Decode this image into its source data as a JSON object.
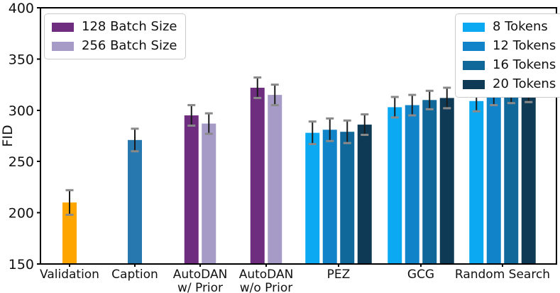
{
  "chart_data": {
    "type": "bar",
    "title": "",
    "xlabel": "",
    "ylabel": "FID",
    "ylim": [
      150,
      400
    ],
    "yticks": [
      150,
      200,
      250,
      300,
      350,
      400
    ],
    "grid": false,
    "error_bars": true,
    "frame": {
      "stroke": "#000000"
    },
    "legends": [
      {
        "position": "upper-left",
        "entries": [
          {
            "label": "128 Batch Size",
            "color": "#6E2D7F"
          },
          {
            "label": "256 Batch Size",
            "color": "#A69BC7"
          }
        ]
      },
      {
        "position": "upper-right",
        "entries": [
          {
            "label": "8 Tokens",
            "color": "#0AA9F2"
          },
          {
            "label": "12 Tokens",
            "color": "#1183C8"
          },
          {
            "label": "16 Tokens",
            "color": "#10689A"
          },
          {
            "label": "20 Tokens",
            "color": "#0E3A56"
          }
        ]
      }
    ],
    "groups": [
      {
        "category": "Validation",
        "lines": [
          "Validation"
        ],
        "bars": [
          {
            "series": "Validation",
            "color": "#FFA500",
            "value": 210,
            "error": 12
          }
        ]
      },
      {
        "category": "Caption",
        "lines": [
          "Caption"
        ],
        "bars": [
          {
            "series": "Caption",
            "color": "#2878B0",
            "value": 271,
            "error": 11
          }
        ]
      },
      {
        "category": "AutoDAN w/ Prior",
        "lines": [
          "AutoDAN",
          "w/ Prior"
        ],
        "bars": [
          {
            "series": "128 Batch Size",
            "color": "#6E2D7F",
            "value": 295,
            "error": 10
          },
          {
            "series": "256 Batch Size",
            "color": "#A69BC7",
            "value": 287,
            "error": 10
          }
        ]
      },
      {
        "category": "AutoDAN w/o Prior",
        "lines": [
          "AutoDAN",
          "w/o Prior"
        ],
        "bars": [
          {
            "series": "128 Batch Size",
            "color": "#6E2D7F",
            "value": 322,
            "error": 10
          },
          {
            "series": "256 Batch Size",
            "color": "#A69BC7",
            "value": 315,
            "error": 10
          }
        ]
      },
      {
        "category": "PEZ",
        "lines": [
          "PEZ"
        ],
        "bars": [
          {
            "series": "8 Tokens",
            "color": "#0AA9F2",
            "value": 278,
            "error": 11
          },
          {
            "series": "12 Tokens",
            "color": "#1183C8",
            "value": 281,
            "error": 11
          },
          {
            "series": "16 Tokens",
            "color": "#10689A",
            "value": 279,
            "error": 11
          },
          {
            "series": "20 Tokens",
            "color": "#0E3A56",
            "value": 286,
            "error": 10
          }
        ]
      },
      {
        "category": "GCG",
        "lines": [
          "GCG"
        ],
        "bars": [
          {
            "series": "8 Tokens",
            "color": "#0AA9F2",
            "value": 303,
            "error": 10
          },
          {
            "series": "12 Tokens",
            "color": "#1183C8",
            "value": 305,
            "error": 10
          },
          {
            "series": "16 Tokens",
            "color": "#10689A",
            "value": 310,
            "error": 9
          },
          {
            "series": "20 Tokens",
            "color": "#0E3A56",
            "value": 312,
            "error": 10
          }
        ]
      },
      {
        "category": "Random Search",
        "lines": [
          "Random Search"
        ],
        "bars": [
          {
            "series": "8 Tokens",
            "color": "#0AA9F2",
            "value": 309,
            "error": 10
          },
          {
            "series": "12 Tokens",
            "color": "#1183C8",
            "value": 315,
            "error": 10
          },
          {
            "series": "16 Tokens",
            "color": "#10689A",
            "value": 316,
            "error": 9
          },
          {
            "series": "20 Tokens",
            "color": "#0E3A56",
            "value": 318,
            "error": 10
          }
        ]
      }
    ]
  }
}
